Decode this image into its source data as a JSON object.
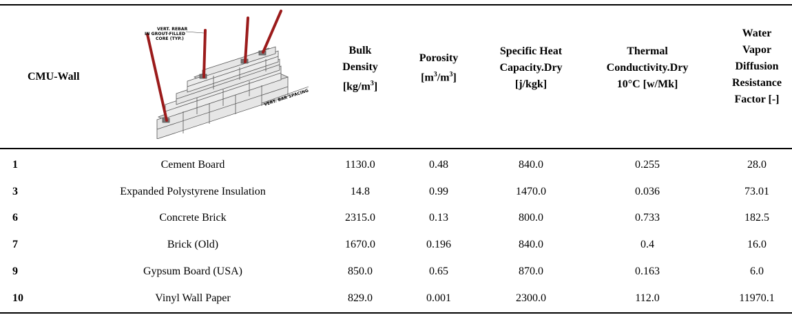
{
  "header": {
    "title": "CMU-Wall",
    "columns": [
      {
        "lines": [
          "Bulk",
          "Density",
          "[kg/m",
          "3",
          "]"
        ]
      },
      {
        "lines": [
          "Porosity",
          "[m",
          "3",
          "/m",
          "3",
          "]"
        ]
      },
      {
        "lines": [
          "Specific Heat",
          "Capacity.Dry",
          "[j/kgk]"
        ]
      },
      {
        "lines": [
          "Thermal",
          "Conductivity.Dry",
          "10°C [w/Mk]"
        ]
      },
      {
        "lines": [
          "Water",
          "Vapor",
          "Diffusion",
          "Resistance",
          "Factor [-]"
        ]
      }
    ]
  },
  "illustration": {
    "callout": [
      "VERT. REBAR",
      "IN GROUT-FILLED",
      "CORE (TYP.)"
    ],
    "spacing": "VERT. BAR SPACING"
  },
  "rows": [
    {
      "id": "1",
      "material": "Cement Board",
      "bulk_density": "1130.0",
      "porosity": "0.48",
      "specific_heat": "840.0",
      "thermal_conductivity": "0.255",
      "vapor_resistance": "28.0"
    },
    {
      "id": "3",
      "material": "Expanded Polystyrene Insulation",
      "bulk_density": "14.8",
      "porosity": "0.99",
      "specific_heat": "1470.0",
      "thermal_conductivity": "0.036",
      "vapor_resistance": "73.01"
    },
    {
      "id": "6",
      "material": "Concrete Brick",
      "bulk_density": "2315.0",
      "porosity": "0.13",
      "specific_heat": "800.0",
      "thermal_conductivity": "0.733",
      "vapor_resistance": "182.5"
    },
    {
      "id": "7",
      "material": "Brick (Old)",
      "bulk_density": "1670.0",
      "porosity": "0.196",
      "specific_heat": "840.0",
      "thermal_conductivity": "0.4",
      "vapor_resistance": "16.0"
    },
    {
      "id": "9",
      "material": "Gypsum Board (USA)",
      "bulk_density": "850.0",
      "porosity": "0.65",
      "specific_heat": "870.0",
      "thermal_conductivity": "0.163",
      "vapor_resistance": "6.0"
    },
    {
      "id": "10",
      "material": "Vinyl Wall Paper",
      "bulk_density": "829.0",
      "porosity": "0.001",
      "specific_heat": "2300.0",
      "thermal_conductivity": "112.0",
      "vapor_resistance": "11970.1"
    }
  ],
  "colors": {
    "rebar": "#9b1b1b",
    "block_light": "#e6e6e6",
    "block_mid": "#c8c8c8",
    "block_dark": "#9a9a9a"
  }
}
